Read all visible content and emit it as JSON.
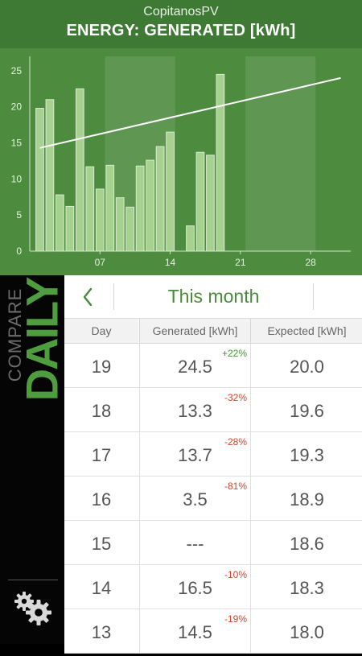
{
  "header": {
    "app_name": "CopitanosPV",
    "title": "ENERGY: GENERATED [kWh]"
  },
  "colors": {
    "header_bg": "#3f7a35",
    "chart_bg": "#4d8c3f",
    "bar_fill": "#a6d18f",
    "accent_green": "#4a8b3b",
    "positive": "#3e9a2e",
    "negative": "#d5442a"
  },
  "chart_data": {
    "type": "bar",
    "x": [
      1,
      2,
      3,
      4,
      5,
      6,
      7,
      8,
      9,
      10,
      11,
      12,
      13,
      14,
      15,
      16,
      17,
      18,
      19
    ],
    "values": [
      19.8,
      21.0,
      7.8,
      6.2,
      22.5,
      11.7,
      8.6,
      11.9,
      7.4,
      6.1,
      11.8,
      12.6,
      14.5,
      16.5,
      0,
      3.5,
      13.7,
      13.3,
      24.5
    ],
    "line_series": {
      "x": [
        1,
        31
      ],
      "values": [
        14.3,
        24.0
      ]
    },
    "x_ticks": [
      "07",
      "14",
      "21",
      "28"
    ],
    "y_ticks": [
      "0",
      "5",
      "10",
      "15",
      "20",
      "25"
    ],
    "xlim": [
      0,
      32
    ],
    "ylim": [
      0,
      27
    ],
    "shaded_bands": [
      [
        7.5,
        14.5
      ],
      [
        21.5,
        28.5
      ]
    ]
  },
  "sidebar": {
    "compare_label": "COMPARE",
    "mode_label": "DAILY",
    "settings_icon": "gears-icon"
  },
  "table": {
    "period_label": "This month",
    "back_icon": "chevron-left-icon",
    "columns": [
      "Day",
      "Generated [kWh]",
      "Expected [kWh]"
    ],
    "rows": [
      {
        "day": "19",
        "generated": "24.5",
        "delta": "+22%",
        "delta_type": "pos",
        "expected": "20.0"
      },
      {
        "day": "18",
        "generated": "13.3",
        "delta": "-32%",
        "delta_type": "neg",
        "expected": "19.6"
      },
      {
        "day": "17",
        "generated": "13.7",
        "delta": "-28%",
        "delta_type": "neg",
        "expected": "19.3"
      },
      {
        "day": "16",
        "generated": "3.5",
        "delta": "-81%",
        "delta_type": "neg",
        "expected": "18.9"
      },
      {
        "day": "15",
        "generated": "---",
        "delta": "",
        "delta_type": "",
        "expected": "18.6"
      },
      {
        "day": "14",
        "generated": "16.5",
        "delta": "-10%",
        "delta_type": "neg",
        "expected": "18.3"
      },
      {
        "day": "13",
        "generated": "14.5",
        "delta": "-19%",
        "delta_type": "neg",
        "expected": "18.0"
      }
    ]
  }
}
